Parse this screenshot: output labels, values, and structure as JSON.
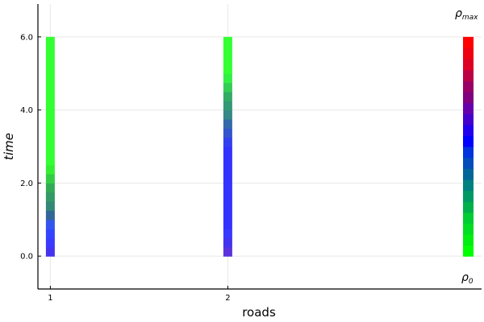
{
  "chart_data": {
    "type": "heatmap",
    "title": "",
    "xlabel": "roads",
    "ylabel": "time",
    "x_ticks": [
      1,
      2
    ],
    "y_ticks": [
      0.0,
      2.0,
      4.0,
      6.0
    ],
    "y_tick_labels": [
      "0.0",
      "2.0",
      "4.0",
      "6.0"
    ],
    "x_tick_labels": [
      "1",
      "2"
    ],
    "xlim": [
      0.93,
      3.43
    ],
    "ylim": [
      -0.9,
      6.9
    ],
    "grid": true,
    "colorbar": {
      "label_max": "ρ",
      "label_max_sub": "max",
      "label_min": "ρ",
      "label_min_sub": "0",
      "stops": [
        "#00ff00",
        "#0000ff",
        "#ff0000"
      ],
      "gradient": [
        "#00ff00",
        "#00ee10",
        "#00dd22",
        "#00cc33",
        "#00b04a",
        "#009966",
        "#008080",
        "#006699",
        "#004dbb",
        "#0033dd",
        "#0000ff",
        "#2200ee",
        "#4400cc",
        "#6600aa",
        "#800080",
        "#990066",
        "#bb0044",
        "#dd0022",
        "#ee0011",
        "#ff0000"
      ]
    },
    "series": [
      {
        "x": 1,
        "y_start": 0.0,
        "y_end": 6.0,
        "colors": [
          "#4433ee",
          "#3a3aff",
          "#3344ff",
          "#3355ee",
          "#336699",
          "#338877",
          "#339966",
          "#33aa55",
          "#33cc44",
          "#33ee33",
          "#33ff33",
          "#33ff33",
          "#33ff33",
          "#33ff33",
          "#33ff33",
          "#33ff33",
          "#33ff33",
          "#33ff33",
          "#33ff33",
          "#33ff33",
          "#33ff33",
          "#33ff33",
          "#33ff33",
          "#33ff33"
        ]
      },
      {
        "x": 2,
        "y_start": 0.0,
        "y_end": 6.0,
        "colors": [
          "#5a33dd",
          "#4433ee",
          "#3838ff",
          "#3333ff",
          "#3333ff",
          "#3333ff",
          "#3333ff",
          "#3333ff",
          "#3333ff",
          "#3333ff",
          "#3333ff",
          "#3333ff",
          "#3340ee",
          "#3355cc",
          "#336aaa",
          "#338888",
          "#339977",
          "#33aa66",
          "#33cc55",
          "#33ee44",
          "#33ff33",
          "#33ff33",
          "#33ff33",
          "#33ff33"
        ]
      }
    ]
  }
}
